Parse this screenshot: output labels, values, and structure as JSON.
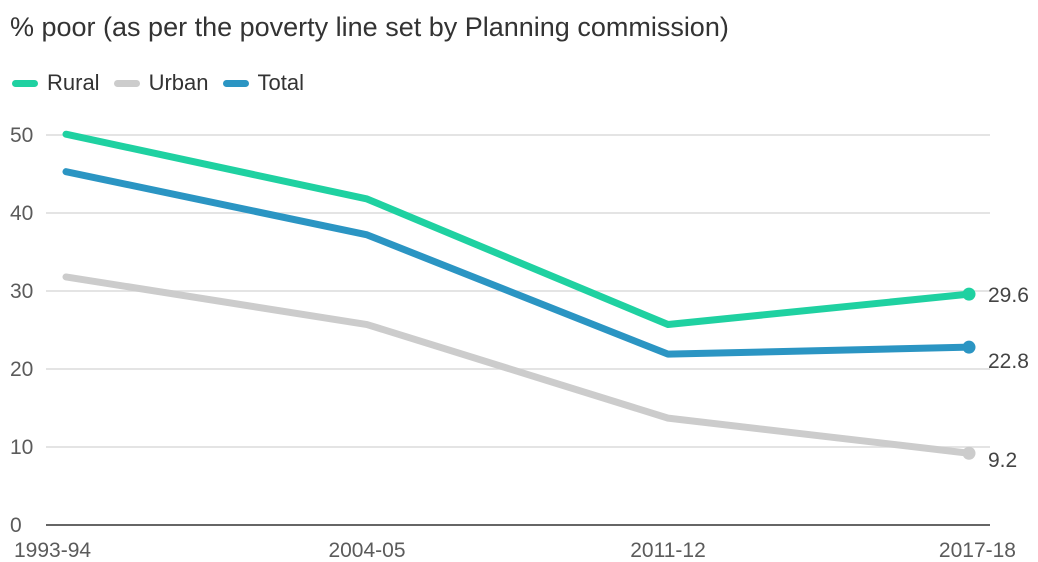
{
  "chart_data": {
    "type": "line",
    "title": "% poor (as per the poverty line set by Planning commission)",
    "xlabel": "",
    "ylabel": "",
    "categories": [
      "1993-94",
      "2004-05",
      "2011-12",
      "2017-18"
    ],
    "ylim": [
      0,
      50
    ],
    "yticks": [
      0,
      10,
      20,
      30,
      40,
      50
    ],
    "grid": true,
    "legend_position": "top-left",
    "series": [
      {
        "name": "Rural",
        "color": "#1fd1a1",
        "values": [
          50.1,
          41.8,
          25.7,
          29.6
        ],
        "end_label": "29.6"
      },
      {
        "name": "Urban",
        "color": "#cccccc",
        "values": [
          31.8,
          25.7,
          13.7,
          9.2
        ],
        "end_label": "9.2"
      },
      {
        "name": "Total",
        "color": "#2b95c3",
        "values": [
          45.3,
          37.2,
          21.9,
          22.8
        ],
        "end_label": "22.8"
      }
    ]
  }
}
